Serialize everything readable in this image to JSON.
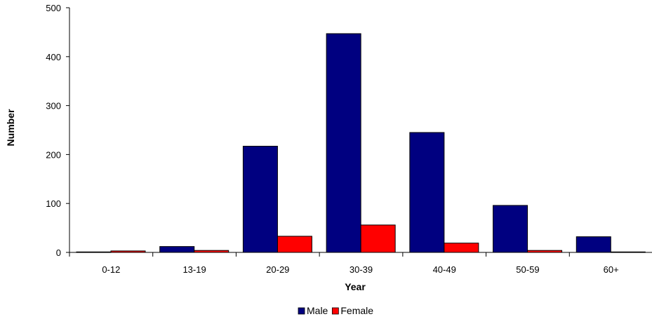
{
  "chart_data": {
    "type": "bar",
    "title": "",
    "xlabel": "Year",
    "ylabel": "Number",
    "categories": [
      "0-12",
      "13-19",
      "20-29",
      "30-39",
      "40-49",
      "50-59",
      "60+"
    ],
    "series": [
      {
        "name": "Male",
        "color": "#000080",
        "values": [
          1,
          12,
          217,
          447,
          245,
          96,
          32
        ]
      },
      {
        "name": "Female",
        "color": "#FF0000",
        "values": [
          3,
          4,
          33,
          56,
          19,
          4,
          1
        ]
      }
    ],
    "ylim": [
      0,
      500
    ],
    "yticks": [
      0,
      100,
      200,
      300,
      400,
      500
    ],
    "grid": false,
    "legend": "bottom-center"
  }
}
